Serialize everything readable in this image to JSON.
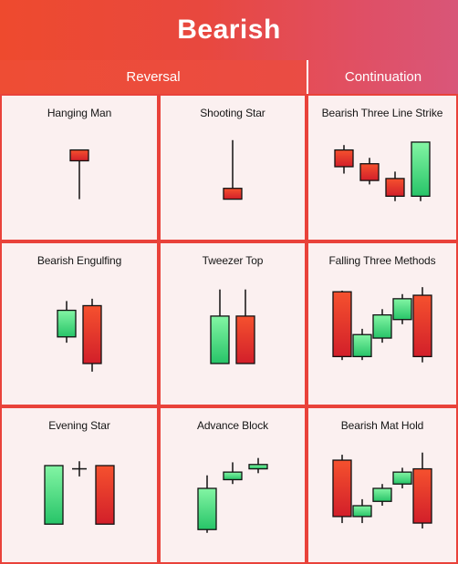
{
  "title": "Bearish",
  "columns": {
    "reversal": "Reversal",
    "continuation": "Continuation"
  },
  "colors": {
    "bull_top": "#83f5a4",
    "bull_bottom": "#27c468",
    "bear_top": "#f5512e",
    "bear_bottom": "#d21f2a",
    "border": "#e9423a",
    "cell_bg": "#fbf0f0"
  },
  "patterns": [
    {
      "name": "Hanging Man",
      "candles": [
        {
          "type": "bear",
          "open": 8.0,
          "close": 6.9,
          "high": 8.0,
          "low": 3.0
        }
      ]
    },
    {
      "name": "Shooting Star",
      "candles": [
        {
          "type": "bear",
          "open": 4.1,
          "close": 3.0,
          "high": 9.0,
          "low": 3.0
        }
      ]
    },
    {
      "name": "Bearish Three Line Strike",
      "candles": [
        {
          "type": "bear",
          "open": 8.0,
          "close": 6.3,
          "high": 8.5,
          "low": 5.6
        },
        {
          "type": "bear",
          "open": 6.6,
          "close": 4.9,
          "high": 7.2,
          "low": 4.5
        },
        {
          "type": "bear",
          "open": 5.1,
          "close": 3.3,
          "high": 5.8,
          "low": 2.8
        },
        {
          "type": "bull",
          "open": 3.3,
          "close": 8.8,
          "high": 8.8,
          "low": 2.8
        }
      ]
    },
    {
      "name": "Bearish Engulfing",
      "candles": [
        {
          "type": "bull",
          "open": 4.9,
          "close": 7.2,
          "high": 8.0,
          "low": 4.4
        },
        {
          "type": "bear",
          "open": 7.6,
          "close": 2.6,
          "high": 8.2,
          "low": 1.9
        }
      ]
    },
    {
      "name": "Tweezer Top",
      "candles": [
        {
          "type": "bull",
          "open": 2.6,
          "close": 6.7,
          "high": 9.0,
          "low": 2.6
        },
        {
          "type": "bear",
          "open": 6.7,
          "close": 2.6,
          "high": 9.0,
          "low": 2.6
        }
      ]
    },
    {
      "name": "Falling Three Methods",
      "candles": [
        {
          "type": "bear",
          "open": 8.8,
          "close": 3.2,
          "high": 8.9,
          "low": 2.9
        },
        {
          "type": "bull",
          "open": 3.2,
          "close": 5.1,
          "high": 5.6,
          "low": 2.9
        },
        {
          "type": "bull",
          "open": 4.8,
          "close": 6.8,
          "high": 7.3,
          "low": 4.4
        },
        {
          "type": "bull",
          "open": 6.4,
          "close": 8.2,
          "high": 8.6,
          "low": 6.0
        },
        {
          "type": "bear",
          "open": 8.5,
          "close": 3.2,
          "high": 9.2,
          "low": 2.7
        }
      ]
    },
    {
      "name": "Evening Star",
      "candles": [
        {
          "type": "bull",
          "open": 2.5,
          "close": 7.9,
          "high": 7.9,
          "low": 2.5
        },
        {
          "type": "doji",
          "open": 7.6,
          "close": 7.6,
          "high": 8.3,
          "low": 6.9
        },
        {
          "type": "bear",
          "open": 7.9,
          "close": 2.5,
          "high": 7.9,
          "low": 2.5
        }
      ]
    },
    {
      "name": "Advance Block",
      "candles": [
        {
          "type": "bull",
          "open": 2.0,
          "close": 5.8,
          "high": 7.0,
          "low": 1.7
        },
        {
          "type": "bull",
          "open": 6.6,
          "close": 7.3,
          "high": 8.2,
          "low": 6.2
        },
        {
          "type": "bull",
          "open": 7.6,
          "close": 8.0,
          "high": 8.6,
          "low": 7.2
        }
      ]
    },
    {
      "name": "Bearish Mat Hold",
      "candles": [
        {
          "type": "bear",
          "open": 8.4,
          "close": 3.2,
          "high": 8.9,
          "low": 2.6
        },
        {
          "type": "bull",
          "open": 3.2,
          "close": 4.2,
          "high": 4.8,
          "low": 2.6
        },
        {
          "type": "bull",
          "open": 4.6,
          "close": 5.8,
          "high": 6.2,
          "low": 4.2
        },
        {
          "type": "bull",
          "open": 6.2,
          "close": 7.3,
          "high": 7.7,
          "low": 5.8
        },
        {
          "type": "bear",
          "open": 7.6,
          "close": 2.6,
          "high": 9.1,
          "low": 2.1
        }
      ]
    }
  ]
}
